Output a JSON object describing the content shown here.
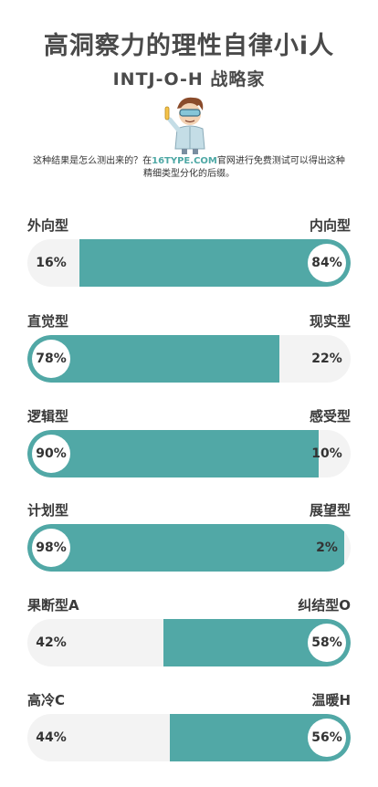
{
  "header": {
    "title": "高洞察力的理性自律小i人",
    "subtitle": "INTJ-O-H 战略家",
    "note_before": "这种结果是怎么测出来的？在",
    "note_link": "16TYPE.COM",
    "note_after": "官网进行免费测试可以得出这种精细类型分化的后缀。"
  },
  "colors": {
    "accent": "#51a8a6",
    "track": "#f3f3f3"
  },
  "traits": [
    {
      "left_label": "外向型",
      "right_label": "内向型",
      "left_pct": "16%",
      "right_pct": "84%",
      "dominant": "right",
      "dominant_value": 84
    },
    {
      "left_label": "直觉型",
      "right_label": "现实型",
      "left_pct": "78%",
      "right_pct": "22%",
      "dominant": "left",
      "dominant_value": 78
    },
    {
      "left_label": "逻辑型",
      "right_label": "感受型",
      "left_pct": "90%",
      "right_pct": "10%",
      "dominant": "left",
      "dominant_value": 90
    },
    {
      "left_label": "计划型",
      "right_label": "展望型",
      "left_pct": "98%",
      "right_pct": "2%",
      "dominant": "left",
      "dominant_value": 98
    },
    {
      "left_label": "果断型A",
      "right_label": "纠结型O",
      "left_pct": "42%",
      "right_pct": "58%",
      "dominant": "right",
      "dominant_value": 58
    },
    {
      "left_label": "高冷C",
      "right_label": "温暖H",
      "left_pct": "44%",
      "right_pct": "56%",
      "dominant": "right",
      "dominant_value": 56
    }
  ]
}
